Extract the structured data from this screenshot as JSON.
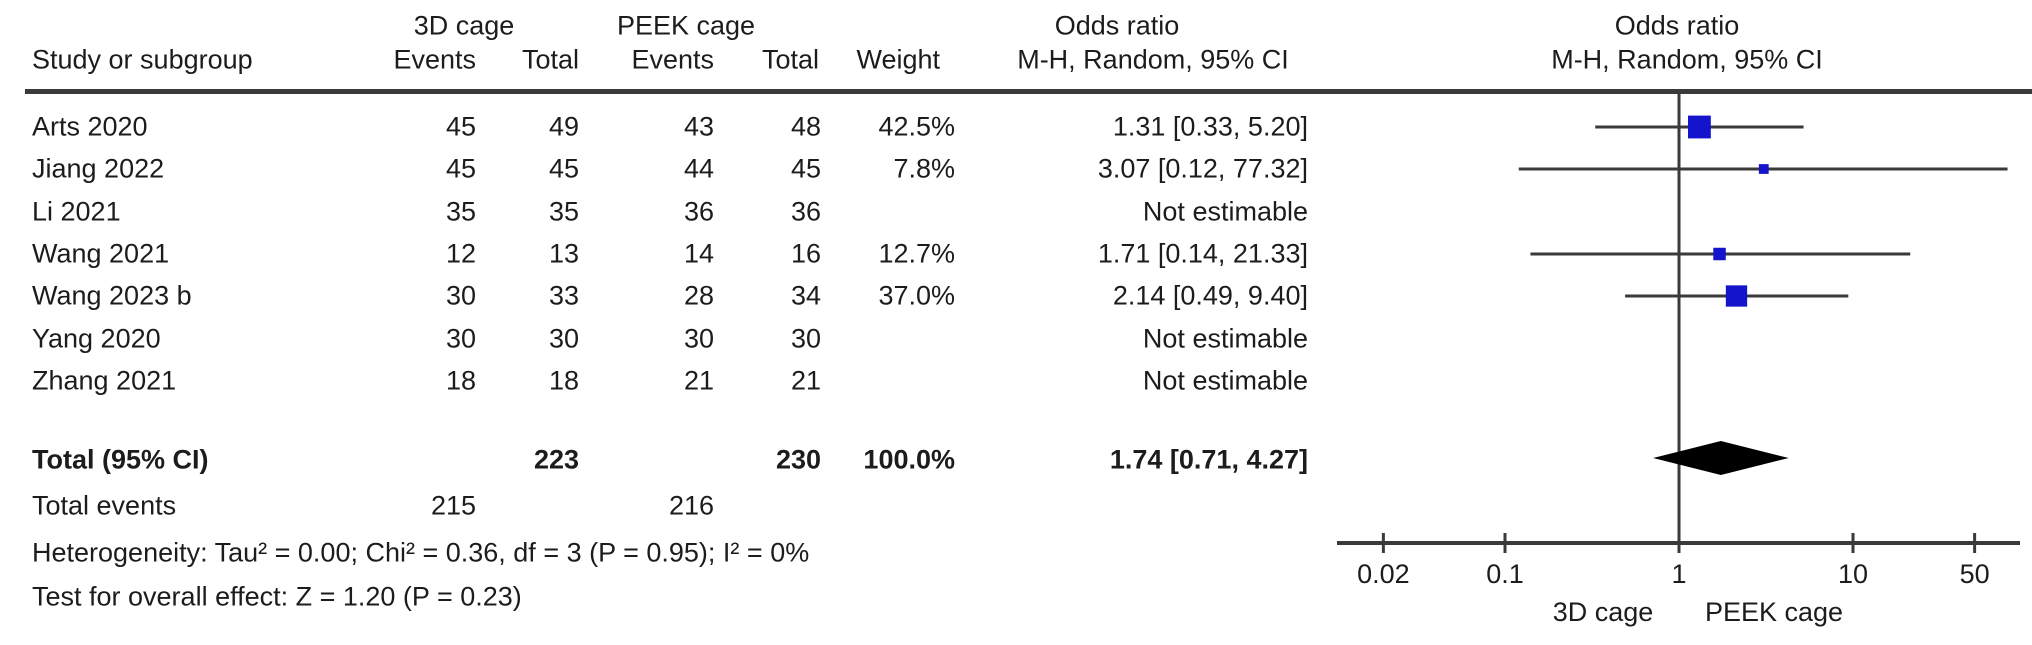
{
  "header": {
    "group1": "3D cage",
    "group2": "PEEK cage",
    "or_text_col_title": "Odds ratio",
    "or_plot_col_title": "Odds ratio",
    "study": "Study or subgroup",
    "events1": "Events",
    "total1": "Total",
    "events2": "Events",
    "total2": "Total",
    "weight": "Weight",
    "mh_text_col": "M-H, Random, 95% CI",
    "mh_plot_col": "M-H, Random, 95% CI"
  },
  "rows": [
    {
      "study": "Arts 2020",
      "events1": "45",
      "total1": "49",
      "events2": "43",
      "total2": "48",
      "weight": "42.5%",
      "or_ci": "1.31 [0.33, 5.20]"
    },
    {
      "study": "Jiang 2022",
      "events1": "45",
      "total1": "45",
      "events2": "44",
      "total2": "45",
      "weight": "7.8%",
      "or_ci": "3.07 [0.12, 77.32]"
    },
    {
      "study": "Li 2021",
      "events1": "35",
      "total1": "35",
      "events2": "36",
      "total2": "36",
      "weight": "",
      "or_ci": "Not estimable"
    },
    {
      "study": "Wang 2021",
      "events1": "12",
      "total1": "13",
      "events2": "14",
      "total2": "16",
      "weight": "12.7%",
      "or_ci": "1.71 [0.14, 21.33]"
    },
    {
      "study": "Wang 2023 b",
      "events1": "30",
      "total1": "33",
      "events2": "28",
      "total2": "34",
      "weight": "37.0%",
      "or_ci": "2.14 [0.49, 9.40]"
    },
    {
      "study": "Yang 2020",
      "events1": "30",
      "total1": "30",
      "events2": "30",
      "total2": "30",
      "weight": "",
      "or_ci": "Not estimable"
    },
    {
      "study": "Zhang 2021",
      "events1": "18",
      "total1": "18",
      "events2": "21",
      "total2": "21",
      "weight": "",
      "or_ci": "Not estimable"
    }
  ],
  "totals": {
    "label": "Total (95% CI)",
    "total1": "223",
    "total2": "230",
    "weight": "100.0%",
    "or_ci": "1.74 [0.71, 4.27]",
    "events_label": "Total events",
    "events1": "215",
    "events2": "216"
  },
  "stats": {
    "heterogeneity": "Heterogeneity: Tau² = 0.00; Chi² = 0.36, df = 3 (P = 0.95); I² = 0%",
    "overall_effect": "Test for overall effect: Z = 1.20 (P = 0.23)"
  },
  "axis": {
    "tick_labels": [
      "0.02",
      "0.1",
      "1",
      "10",
      "50"
    ],
    "left_label": "3D cage",
    "right_label": "PEEK cage"
  },
  "colors": {
    "marker_blue": "#1414cc",
    "line_dark": "#3a3a3a",
    "diamond_black": "#000000"
  },
  "chart_data": {
    "type": "forest",
    "x_scale": "log",
    "null_line": 1,
    "x_ticks": [
      0.02,
      0.1,
      1,
      10,
      50
    ],
    "x_range": [
      0.011,
      91
    ],
    "studies": [
      {
        "name": "Arts 2020",
        "or": 1.31,
        "ci_low": 0.33,
        "ci_high": 5.2,
        "weight_pct": 42.5,
        "estimable": true
      },
      {
        "name": "Jiang 2022",
        "or": 3.07,
        "ci_low": 0.12,
        "ci_high": 77.32,
        "weight_pct": 7.8,
        "estimable": true
      },
      {
        "name": "Li 2021",
        "or": null,
        "ci_low": null,
        "ci_high": null,
        "weight_pct": null,
        "estimable": false
      },
      {
        "name": "Wang 2021",
        "or": 1.71,
        "ci_low": 0.14,
        "ci_high": 21.33,
        "weight_pct": 12.7,
        "estimable": true
      },
      {
        "name": "Wang 2023 b",
        "or": 2.14,
        "ci_low": 0.49,
        "ci_high": 9.4,
        "weight_pct": 37.0,
        "estimable": true
      },
      {
        "name": "Yang 2020",
        "or": null,
        "ci_low": null,
        "ci_high": null,
        "weight_pct": null,
        "estimable": false
      },
      {
        "name": "Zhang 2021",
        "or": null,
        "ci_low": null,
        "ci_high": null,
        "weight_pct": null,
        "estimable": false
      }
    ],
    "total": {
      "or": 1.74,
      "ci_low": 0.71,
      "ci_high": 4.27,
      "weight_pct": 100.0
    }
  }
}
